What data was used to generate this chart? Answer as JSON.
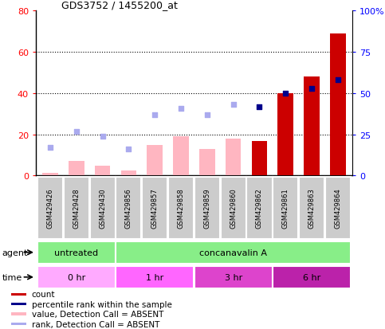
{
  "title": "GDS3752 / 1455200_at",
  "samples": [
    "GSM429426",
    "GSM429428",
    "GSM429430",
    "GSM429856",
    "GSM429857",
    "GSM429858",
    "GSM429859",
    "GSM429860",
    "GSM429862",
    "GSM429861",
    "GSM429863",
    "GSM429864"
  ],
  "count_values": [
    1.5,
    7.0,
    5.0,
    2.5,
    15.0,
    19.0,
    13.0,
    18.0,
    17.0,
    40.0,
    48.0,
    69.0
  ],
  "count_is_absent": [
    true,
    true,
    true,
    true,
    true,
    true,
    true,
    true,
    false,
    false,
    false,
    false
  ],
  "percentile_rank": [
    17,
    27,
    24,
    16,
    37,
    41,
    37,
    43,
    42,
    50,
    53,
    58
  ],
  "rank_is_absent": [
    true,
    true,
    true,
    true,
    true,
    true,
    true,
    true,
    false,
    false,
    false,
    false
  ],
  "left_ylim": [
    0,
    80
  ],
  "right_ylim": [
    0,
    100
  ],
  "left_yticks": [
    0,
    20,
    40,
    60,
    80
  ],
  "right_yticks": [
    0,
    25,
    50,
    75,
    100
  ],
  "right_yticklabels": [
    "0",
    "25",
    "50",
    "75",
    "100%"
  ],
  "color_count_present": "#cc0000",
  "color_count_absent": "#ffb6c1",
  "color_rank_present": "#00008b",
  "color_rank_absent": "#aaaaee",
  "bar_width": 0.6,
  "agent_label": "agent",
  "time_label": "time",
  "agent_groups": [
    {
      "label": "untreated",
      "start": 0,
      "end": 2,
      "color": "#88ee88"
    },
    {
      "label": "concanavalin A",
      "start": 3,
      "end": 11,
      "color": "#88ee88"
    }
  ],
  "time_groups": [
    {
      "label": "0 hr",
      "start": 0,
      "end": 2,
      "color": "#ffaaff"
    },
    {
      "label": "1 hr",
      "start": 3,
      "end": 5,
      "color": "#ff66ff"
    },
    {
      "label": "3 hr",
      "start": 6,
      "end": 8,
      "color": "#dd44cc"
    },
    {
      "label": "6 hr",
      "start": 9,
      "end": 11,
      "color": "#bb22aa"
    }
  ],
  "legend_items": [
    {
      "color": "#cc0000",
      "label": "count"
    },
    {
      "color": "#00008b",
      "label": "percentile rank within the sample"
    },
    {
      "color": "#ffb6c1",
      "label": "value, Detection Call = ABSENT"
    },
    {
      "color": "#aaaaee",
      "label": "rank, Detection Call = ABSENT"
    }
  ],
  "bg_color": "#ffffff",
  "plot_bg": "#ffffff",
  "box_color": "#cccccc"
}
